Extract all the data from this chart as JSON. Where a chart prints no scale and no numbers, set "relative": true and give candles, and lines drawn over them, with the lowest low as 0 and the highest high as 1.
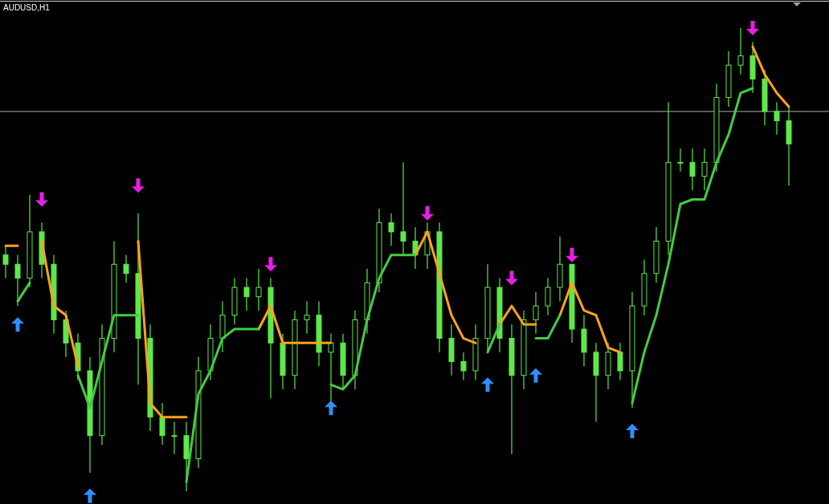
{
  "chart_data": {
    "type": "candlestick",
    "title": "AUDUSD,H1",
    "relative": true,
    "color": "#5ee84a",
    "categories": [
      null,
      null,
      null,
      null,
      null,
      null,
      null,
      null,
      null,
      null,
      null,
      null,
      null,
      null,
      null,
      null,
      null,
      null,
      null,
      null,
      null,
      null,
      null,
      null,
      null,
      null,
      null,
      null,
      null,
      null,
      null,
      null,
      null,
      null,
      null,
      null,
      null,
      null,
      null,
      null,
      null,
      null,
      null,
      null,
      null,
      null,
      null,
      null,
      null,
      null,
      null,
      null,
      null,
      null,
      null,
      null,
      null,
      null,
      null,
      null,
      null,
      null,
      null,
      null,
      null,
      null
    ],
    "ohlc": [
      [
        0.51,
        0.53,
        0.46,
        0.49
      ],
      [
        0.49,
        0.51,
        0.4,
        0.46
      ],
      [
        0.46,
        0.64,
        0.44,
        0.56
      ],
      [
        0.56,
        0.58,
        0.46,
        0.49
      ],
      [
        0.49,
        0.51,
        0.34,
        0.37
      ],
      [
        0.37,
        0.39,
        0.29,
        0.32
      ],
      [
        0.32,
        0.34,
        0.24,
        0.26
      ],
      [
        0.26,
        0.29,
        0.04,
        0.12
      ],
      [
        0.12,
        0.36,
        0.1,
        0.33
      ],
      [
        0.33,
        0.54,
        0.3,
        0.49
      ],
      [
        0.49,
        0.51,
        0.45,
        0.47
      ],
      [
        0.47,
        0.6,
        0.23,
        0.33
      ],
      [
        0.33,
        0.36,
        0.13,
        0.16
      ],
      [
        0.16,
        0.19,
        0.1,
        0.12
      ],
      [
        0.12,
        0.15,
        0.08,
        0.12
      ],
      [
        0.12,
        0.15,
        0,
        0.07
      ],
      [
        0.07,
        0.29,
        0.05,
        0.26
      ],
      [
        0.26,
        0.36,
        0.24,
        0.33
      ],
      [
        0.33,
        0.41,
        0.3,
        0.38
      ],
      [
        0.38,
        0.46,
        0.36,
        0.44
      ],
      [
        0.44,
        0.46,
        0.39,
        0.42
      ],
      [
        0.42,
        0.48,
        0.39,
        0.44
      ],
      [
        0.44,
        0.46,
        0.2,
        0.32
      ],
      [
        0.32,
        0.34,
        0.22,
        0.25
      ],
      [
        0.25,
        0.39,
        0.22,
        0.37
      ],
      [
        0.37,
        0.41,
        0.34,
        0.38
      ],
      [
        0.38,
        0.41,
        0.27,
        0.3
      ],
      [
        0.3,
        0.34,
        0.19,
        0.32
      ],
      [
        0.32,
        0.34,
        0.22,
        0.25
      ],
      [
        0.25,
        0.39,
        0.22,
        0.37
      ],
      [
        0.37,
        0.48,
        0.34,
        0.45
      ],
      [
        0.45,
        0.61,
        0.43,
        0.58
      ],
      [
        0.58,
        0.6,
        0.53,
        0.56
      ],
      [
        0.56,
        0.71,
        0.51,
        0.54
      ],
      [
        0.54,
        0.57,
        0.48,
        0.51
      ],
      [
        0.51,
        0.58,
        0.48,
        0.56
      ],
      [
        0.56,
        0.58,
        0.3,
        0.33
      ],
      [
        0.33,
        0.36,
        0.25,
        0.28
      ],
      [
        0.28,
        0.3,
        0.24,
        0.26
      ],
      [
        0.26,
        0.36,
        0.24,
        0.33
      ],
      [
        0.33,
        0.49,
        0.3,
        0.44
      ],
      [
        0.44,
        0.46,
        0.3,
        0.33
      ],
      [
        0.33,
        0.36,
        0.08,
        0.25
      ],
      [
        0.25,
        0.39,
        0.22,
        0.37
      ],
      [
        0.37,
        0.43,
        0.34,
        0.4
      ],
      [
        0.4,
        0.46,
        0.38,
        0.44
      ],
      [
        0.44,
        0.55,
        0.41,
        0.49
      ],
      [
        0.49,
        0.49,
        0.32,
        0.35
      ],
      [
        0.35,
        0.38,
        0.27,
        0.3
      ],
      [
        0.3,
        0.32,
        0.15,
        0.25
      ],
      [
        0.25,
        0.32,
        0.22,
        0.3
      ],
      [
        0.3,
        0.32,
        0.24,
        0.26
      ],
      [
        0.26,
        0.43,
        0.18,
        0.4
      ],
      [
        0.4,
        0.5,
        0.38,
        0.47
      ],
      [
        0.47,
        0.57,
        0.45,
        0.54
      ],
      [
        0.54,
        0.84,
        0.51,
        0.71
      ],
      [
        0.71,
        0.74,
        0.69,
        0.71
      ],
      [
        0.71,
        0.74,
        0.65,
        0.68
      ],
      [
        0.68,
        0.74,
        0.65,
        0.71
      ],
      [
        0.71,
        0.88,
        0.69,
        0.85
      ],
      [
        0.85,
        0.95,
        0.83,
        0.92
      ],
      [
        0.92,
        1.0,
        0.9,
        0.94
      ],
      [
        0.94,
        0.97,
        0.86,
        0.89
      ],
      [
        0.89,
        0.91,
        0.79,
        0.82
      ],
      [
        0.82,
        0.84,
        0.77,
        0.8
      ],
      [
        0.8,
        0.83,
        0.66,
        0.75
      ]
    ],
    "series": [
      {
        "type": "line",
        "color": "#ffa31a",
        "values": [
          0.53,
          0.53,
          null,
          0.54,
          0.4,
          0.38,
          0.27,
          null,
          null,
          null,
          null,
          0.54,
          0.19,
          0.16,
          0.16,
          0.16,
          null,
          null,
          null,
          null,
          null,
          0.35,
          0.4,
          0.32,
          0.32,
          0.32,
          0.32,
          0.32,
          null,
          null,
          null,
          null,
          null,
          null,
          0.51,
          0.56,
          0.47,
          0.38,
          0.33,
          0.32,
          null,
          0.36,
          0.4,
          0.36,
          0.36,
          null,
          0.38,
          0.45,
          0.39,
          0.38,
          0.31,
          0.3,
          null,
          null,
          null,
          null,
          null,
          null,
          null,
          null,
          null,
          null,
          0.96,
          0.9,
          0.86,
          0.83
        ]
      },
      {
        "type": "line",
        "color": "#44cc44",
        "values": [
          null,
          0.41,
          0.45,
          null,
          null,
          null,
          0.25,
          0.18,
          0.28,
          0.38,
          0.38,
          0.38,
          null,
          null,
          null,
          0.02,
          0.21,
          0.26,
          0.33,
          0.35,
          0.35,
          0.35,
          null,
          null,
          null,
          null,
          null,
          0.23,
          0.22,
          0.25,
          0.37,
          0.46,
          0.51,
          0.51,
          0.51,
          null,
          null,
          null,
          null,
          null,
          0.3,
          0.36,
          null,
          null,
          0.33,
          0.33,
          0.38,
          null,
          null,
          null,
          null,
          null,
          0.19,
          0.3,
          0.38,
          0.49,
          0.62,
          0.63,
          0.63,
          0.71,
          0.77,
          0.86,
          0.87,
          null,
          null,
          null
        ]
      },
      {
        "type": "scatter",
        "color": "#e81ee8",
        "values": [
          null,
          null,
          null,
          0.63,
          null,
          null,
          null,
          null,
          null,
          null,
          null,
          0.66,
          null,
          null,
          null,
          null,
          null,
          null,
          null,
          null,
          null,
          null,
          0.49,
          null,
          null,
          null,
          null,
          null,
          null,
          null,
          null,
          null,
          null,
          null,
          null,
          0.6,
          null,
          null,
          null,
          null,
          null,
          null,
          0.46,
          null,
          null,
          null,
          null,
          0.51,
          null,
          null,
          null,
          null,
          null,
          null,
          null,
          null,
          null,
          null,
          null,
          null,
          null,
          null,
          1.0,
          null,
          null,
          null
        ]
      },
      {
        "type": "scatter",
        "color": "#2f8fff",
        "values": [
          null,
          0.36,
          null,
          null,
          null,
          null,
          null,
          -0.01,
          null,
          null,
          null,
          null,
          null,
          null,
          null,
          null,
          null,
          null,
          null,
          null,
          null,
          null,
          null,
          null,
          null,
          null,
          null,
          0.18,
          null,
          null,
          null,
          null,
          null,
          null,
          null,
          null,
          null,
          null,
          null,
          null,
          0.23,
          null,
          null,
          null,
          0.25,
          null,
          null,
          null,
          null,
          null,
          null,
          null,
          0.13,
          null,
          null,
          null,
          null,
          null,
          null,
          null,
          null,
          null,
          null,
          null,
          null,
          null
        ]
      }
    ],
    "ref_lines": [
      {
        "axis": "y",
        "value": 0.82,
        "color": "#b0b0b0"
      }
    ]
  }
}
